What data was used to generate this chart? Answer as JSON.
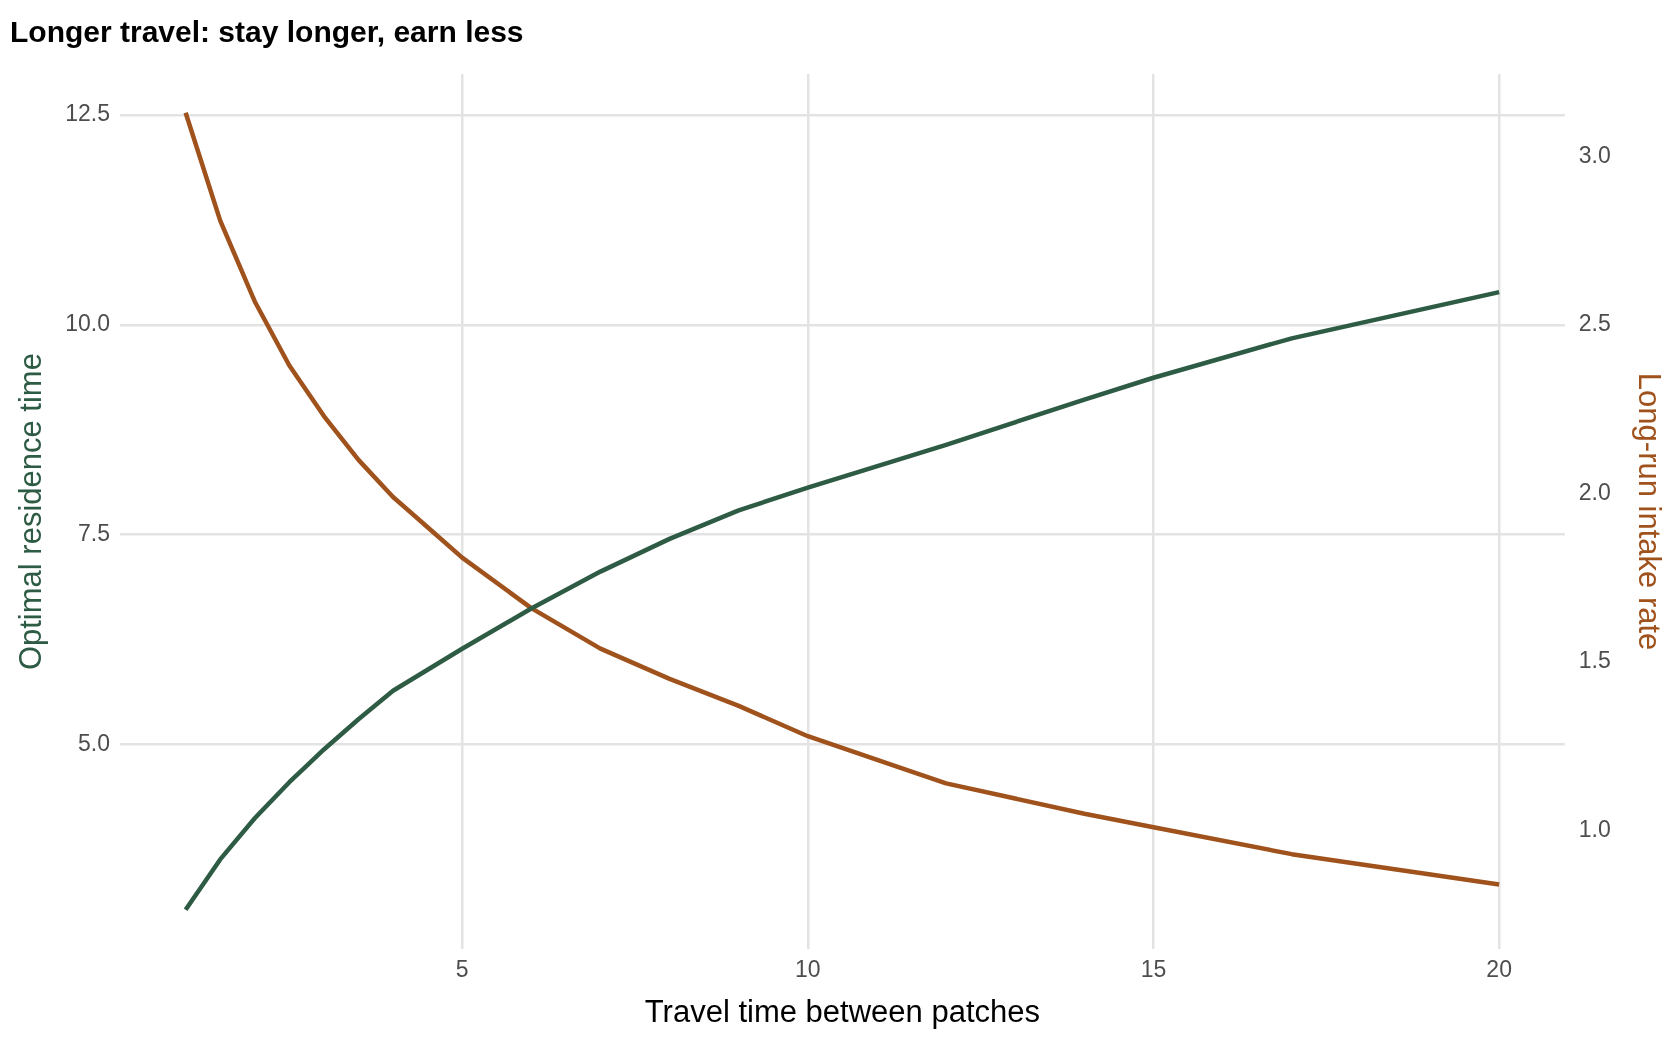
{
  "chart_data": {
    "type": "line",
    "title": "Longer travel: stay longer, earn less",
    "xlabel": "Travel time between patches",
    "ylabel": "Optimal residence time",
    "y2label": "Long-run intake rate",
    "x": [
      1,
      1.5,
      2,
      2.5,
      3,
      3.5,
      4,
      4.5,
      5,
      6,
      7,
      8,
      9,
      10,
      12,
      14,
      15,
      17,
      20
    ],
    "series": [
      {
        "color": "#2e5b44",
        "values": [
          3.03,
          3.63,
          4.12,
          4.55,
          4.94,
          5.3,
          5.64,
          5.89,
          6.14,
          6.62,
          7.06,
          7.45,
          7.79,
          8.06,
          8.57,
          9.11,
          9.37,
          9.84,
          10.39
        ]
      },
      {
        "color": "#a0521c",
        "axis": "y2",
        "values": [
          3.13,
          2.81,
          2.57,
          2.38,
          2.23,
          2.1,
          1.99,
          1.9,
          1.81,
          1.66,
          1.54,
          1.45,
          1.37,
          1.28,
          1.14,
          1.05,
          1.01,
          0.93,
          0.84
        ]
      }
    ],
    "xlim": [
      0.05,
      20.95
    ],
    "xticks": [
      5,
      10,
      15,
      20
    ],
    "ylim": [
      2.56,
      12.99
    ],
    "yticks": [
      {
        "value": 5,
        "label": "5.0"
      },
      {
        "value": 7.5,
        "label": "7.5"
      },
      {
        "value": 10,
        "label": "10.0"
      },
      {
        "value": 12.5,
        "label": "12.5"
      }
    ],
    "y2lim": [
      0.648,
      3.245
    ],
    "y2ticks": [
      {
        "value": 1,
        "label": "1.0"
      },
      {
        "value": 1.5,
        "label": "1.5"
      },
      {
        "value": 2,
        "label": "2.0"
      },
      {
        "value": 2.5,
        "label": "2.5"
      },
      {
        "value": 3,
        "label": "3.0"
      }
    ],
    "grid": true,
    "legend": false,
    "marker": "none",
    "line_style": "solid"
  }
}
